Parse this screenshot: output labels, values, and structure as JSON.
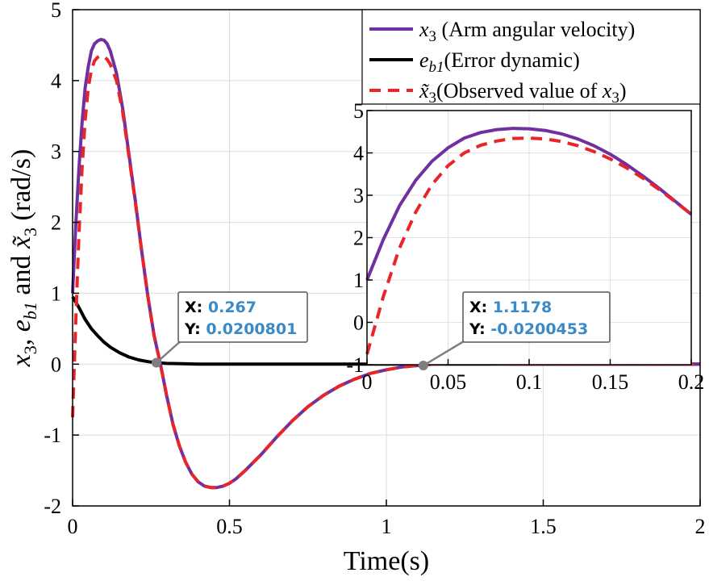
{
  "chart_data": {
    "type": "line",
    "xlabel": "Time(s)",
    "ylabel": {
      "a": "x",
      "a_sub": "3",
      "sep1": ", ",
      "b": "e",
      "b_sub": "b1",
      "sep2": " and ",
      "c": "x̃",
      "c_sub": "3",
      "unit": " (rad/s)"
    },
    "xlim": [
      0,
      2
    ],
    "ylim": [
      -2,
      5
    ],
    "xticks": [
      "0",
      "0.5",
      "1",
      "1.5",
      "2"
    ],
    "yticks": [
      "-2",
      "-1",
      "0",
      "1",
      "2",
      "3",
      "4",
      "5"
    ],
    "grid": true,
    "legend_position": "top-right",
    "series": [
      {
        "key": "x3",
        "name_main": "x",
        "name_sub": "3",
        "name_rest": " (Arm angular velocity)",
        "color": "#7030A0",
        "style": "solid",
        "x": [
          0,
          0.01,
          0.02,
          0.03,
          0.04,
          0.05,
          0.06,
          0.07,
          0.08,
          0.09,
          0.1,
          0.11,
          0.12,
          0.14,
          0.16,
          0.18,
          0.2,
          0.22,
          0.24,
          0.26,
          0.28,
          0.3,
          0.32,
          0.34,
          0.36,
          0.38,
          0.4,
          0.42,
          0.44,
          0.46,
          0.48,
          0.5,
          0.52,
          0.55,
          0.6,
          0.65,
          0.7,
          0.75,
          0.8,
          0.85,
          0.9,
          0.95,
          1.0,
          1.05,
          1.1,
          1.15,
          1.2,
          1.3,
          1.4,
          1.6,
          1.8,
          2.0
        ],
        "y": [
          1.0,
          1.95,
          2.75,
          3.4,
          3.9,
          4.2,
          4.42,
          4.52,
          4.56,
          4.58,
          4.57,
          4.52,
          4.42,
          4.1,
          3.6,
          2.95,
          2.3,
          1.6,
          0.95,
          0.4,
          0.0,
          -0.45,
          -0.85,
          -1.15,
          -1.38,
          -1.55,
          -1.66,
          -1.72,
          -1.74,
          -1.74,
          -1.72,
          -1.68,
          -1.62,
          -1.5,
          -1.28,
          -1.03,
          -0.8,
          -0.6,
          -0.44,
          -0.31,
          -0.21,
          -0.13,
          -0.08,
          -0.04,
          -0.02,
          0.0,
          0.01,
          0.01,
          0.0,
          0.0,
          0.0,
          0.0
        ]
      },
      {
        "key": "eb1",
        "name_main": "e",
        "name_sub": "b1",
        "name_rest": "(Error dynamic)",
        "color": "#000000",
        "style": "solid",
        "x": [
          0,
          0.02,
          0.04,
          0.06,
          0.08,
          0.1,
          0.12,
          0.15,
          0.18,
          0.21,
          0.24,
          0.267,
          0.3,
          0.35,
          0.4,
          0.5,
          0.6,
          0.8,
          1.0,
          1.2,
          1.5,
          1.8,
          2.0
        ],
        "y": [
          0.95,
          0.8,
          0.63,
          0.5,
          0.4,
          0.31,
          0.24,
          0.16,
          0.1,
          0.06,
          0.035,
          0.02,
          0.01,
          0.005,
          0.0,
          0.0,
          0.0,
          0.0,
          0.0,
          0.0,
          0.0,
          0.0,
          0.0
        ]
      },
      {
        "key": "x3obs",
        "name_main": "x̃",
        "name_sub": "3",
        "name_rest": "(Observed value of ",
        "name_tail_main": "x",
        "name_tail_sub": "3",
        "name_tail_rest": ")",
        "color": "#E8262A",
        "style": "dashed",
        "x": [
          0,
          0.01,
          0.02,
          0.03,
          0.04,
          0.05,
          0.06,
          0.07,
          0.08,
          0.09,
          0.1,
          0.11,
          0.12,
          0.14,
          0.16,
          0.18,
          0.2,
          0.22,
          0.24,
          0.26,
          0.28,
          0.3,
          0.32,
          0.34,
          0.36,
          0.38,
          0.4,
          0.42,
          0.44,
          0.46,
          0.48,
          0.5,
          0.52,
          0.55,
          0.6,
          0.65,
          0.7,
          0.75,
          0.8,
          0.85,
          0.9,
          0.95,
          1.0,
          1.05,
          1.1,
          1.15,
          1.2,
          1.3,
          1.4,
          1.6,
          1.8,
          2.0
        ],
        "y": [
          -0.75,
          0.6,
          1.8,
          2.75,
          3.45,
          3.9,
          4.15,
          4.28,
          4.33,
          4.35,
          4.34,
          4.3,
          4.23,
          4.0,
          3.55,
          2.92,
          2.28,
          1.6,
          0.95,
          0.4,
          0.0,
          -0.45,
          -0.85,
          -1.15,
          -1.38,
          -1.55,
          -1.66,
          -1.72,
          -1.74,
          -1.74,
          -1.72,
          -1.68,
          -1.62,
          -1.5,
          -1.28,
          -1.03,
          -0.8,
          -0.6,
          -0.44,
          -0.31,
          -0.21,
          -0.13,
          -0.08,
          -0.04,
          -0.02,
          0.0,
          0.01,
          0.01,
          0.0,
          0.0,
          0.0,
          0.0
        ]
      }
    ],
    "datatips": [
      {
        "x_label": "X: ",
        "x_value": "0.267",
        "y_label": "Y: ",
        "y_value": "0.0200801",
        "point": [
          0.267,
          0.02
        ]
      },
      {
        "x_label": "X: ",
        "x_value": "1.1178",
        "y_label": "Y: ",
        "y_value": "-0.0200453",
        "point": [
          1.1178,
          -0.02
        ]
      }
    ],
    "inset": {
      "xlim": [
        0,
        0.2
      ],
      "ylim": [
        -1,
        5
      ],
      "xticks": [
        "0",
        "0.05",
        "0.1",
        "0.15",
        "0.2"
      ],
      "yticks": [
        "-1",
        "0",
        "1",
        "2",
        "3",
        "4",
        "5"
      ],
      "series": [
        {
          "key": "x3",
          "color": "#7030A0",
          "style": "solid",
          "x": [
            0,
            0.01,
            0.02,
            0.03,
            0.04,
            0.05,
            0.06,
            0.07,
            0.08,
            0.09,
            0.1,
            0.11,
            0.12,
            0.13,
            0.14,
            0.15,
            0.16,
            0.17,
            0.18,
            0.19,
            0.2
          ],
          "y": [
            1.0,
            1.95,
            2.75,
            3.35,
            3.8,
            4.12,
            4.35,
            4.48,
            4.55,
            4.58,
            4.57,
            4.53,
            4.45,
            4.33,
            4.17,
            3.97,
            3.73,
            3.46,
            3.17,
            2.86,
            2.55
          ]
        },
        {
          "key": "x3obs",
          "color": "#E8262A",
          "style": "dashed",
          "x": [
            0,
            0.01,
            0.02,
            0.03,
            0.04,
            0.05,
            0.06,
            0.07,
            0.08,
            0.09,
            0.1,
            0.11,
            0.12,
            0.13,
            0.14,
            0.15,
            0.16,
            0.17,
            0.18,
            0.19,
            0.2
          ],
          "y": [
            -0.75,
            0.6,
            1.75,
            2.6,
            3.25,
            3.7,
            4.0,
            4.18,
            4.28,
            4.34,
            4.35,
            4.33,
            4.27,
            4.17,
            4.03,
            3.86,
            3.65,
            3.41,
            3.14,
            2.85,
            2.55
          ]
        }
      ]
    }
  }
}
